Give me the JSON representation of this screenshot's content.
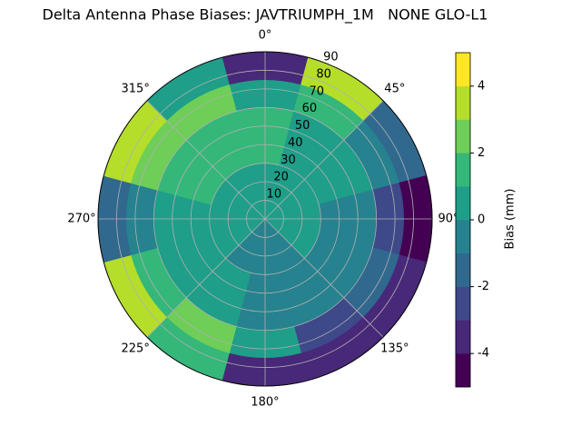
{
  "chart_data": {
    "type": "polar-contour",
    "title": "Delta Antenna Phase Biases: JAVTRIUMPH_1M   NONE GLO-L1",
    "colorbar_label": "Bias (mm)",
    "azimuths": [
      0,
      30,
      60,
      90,
      120,
      150,
      180,
      210,
      240,
      270,
      300,
      330
    ],
    "zenith_edges": [
      0,
      30,
      60,
      75,
      90
    ],
    "values": [
      [
        0.5,
        1.5,
        0.5,
        -3
      ],
      [
        0.5,
        1,
        2,
        3.5
      ],
      [
        0.5,
        0.5,
        0,
        -1
      ],
      [
        0.5,
        0,
        -2,
        -4.5
      ],
      [
        0.5,
        -0.5,
        -1.5,
        -3
      ],
      [
        -0.5,
        -0.5,
        -2,
        -3.5
      ],
      [
        -0.5,
        -0.5,
        0.5,
        -3
      ],
      [
        -0.5,
        0.5,
        2.5,
        2
      ],
      [
        0.5,
        0.5,
        1.5,
        3.5
      ],
      [
        0.5,
        0.5,
        -0.5,
        -1.5
      ],
      [
        0.5,
        1.5,
        2.5,
        3.5
      ],
      [
        0.5,
        1.5,
        2.5,
        0.5
      ]
    ],
    "levels": [
      -5,
      -4,
      -3,
      -2,
      -1,
      0,
      1,
      2,
      3,
      4,
      5
    ],
    "colors": [
      "#440154",
      "#482878",
      "#3e4989",
      "#31688e",
      "#26828e",
      "#1f9e89",
      "#35b779",
      "#6ece58",
      "#b5de2b",
      "#fde725"
    ],
    "rlim": [
      0,
      90
    ],
    "rticks": [
      10,
      20,
      30,
      40,
      50,
      60,
      70,
      80,
      90
    ],
    "thetaticks": [
      {
        "value": 0,
        "label": "0°"
      },
      {
        "value": 45,
        "label": "45°"
      },
      {
        "value": 90,
        "label": "90°"
      },
      {
        "value": 135,
        "label": "135°"
      },
      {
        "value": 180,
        "label": "180°"
      },
      {
        "value": 225,
        "label": "225°"
      },
      {
        "value": 270,
        "label": "270°"
      },
      {
        "value": 315,
        "label": "315°"
      }
    ],
    "clim": [
      -5,
      5
    ],
    "cticks": [
      -4,
      -2,
      0,
      2,
      4
    ],
    "grid": true
  }
}
